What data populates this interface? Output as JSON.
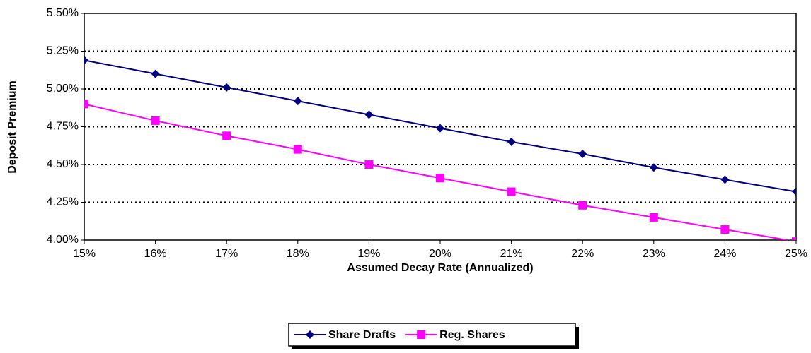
{
  "chart_data": {
    "type": "line",
    "x_label": "Assumed Decay Rate (Annualized)",
    "y_label": "Deposit Premium",
    "x": [
      15,
      16,
      17,
      18,
      19,
      20,
      21,
      22,
      23,
      24,
      25
    ],
    "series": [
      {
        "name": "Share Drafts",
        "color": "#000080",
        "marker": "diamond",
        "values": [
          5.19,
          5.1,
          5.01,
          4.92,
          4.83,
          4.74,
          4.65,
          4.57,
          4.48,
          4.4,
          4.32
        ]
      },
      {
        "name": "Reg. Shares",
        "color": "#ff00ff",
        "marker": "square",
        "values": [
          4.9,
          4.79,
          4.69,
          4.6,
          4.5,
          4.41,
          4.32,
          4.23,
          4.15,
          4.07,
          3.99
        ]
      }
    ],
    "xlim": [
      15,
      25
    ],
    "xticks": [
      {
        "value": 15,
        "label": "15%"
      },
      {
        "value": 16,
        "label": "16%"
      },
      {
        "value": 17,
        "label": "17%"
      },
      {
        "value": 18,
        "label": "18%"
      },
      {
        "value": 19,
        "label": "19%"
      },
      {
        "value": 20,
        "label": "20%"
      },
      {
        "value": 21,
        "label": "21%"
      },
      {
        "value": 22,
        "label": "22%"
      },
      {
        "value": 23,
        "label": "23%"
      },
      {
        "value": 24,
        "label": "24%"
      },
      {
        "value": 25,
        "label": "25%"
      }
    ],
    "ylim": [
      4.0,
      5.5
    ],
    "yticks": [
      {
        "value": 4.0,
        "label": "4.00%"
      },
      {
        "value": 4.25,
        "label": "4.25%"
      },
      {
        "value": 4.5,
        "label": "4.50%"
      },
      {
        "value": 4.75,
        "label": "4.75%"
      },
      {
        "value": 5.0,
        "label": "5.00%"
      },
      {
        "value": 5.25,
        "label": "5.25%"
      },
      {
        "value": 5.5,
        "label": "5.50%"
      }
    ],
    "grid": true,
    "legend": "bottom"
  }
}
